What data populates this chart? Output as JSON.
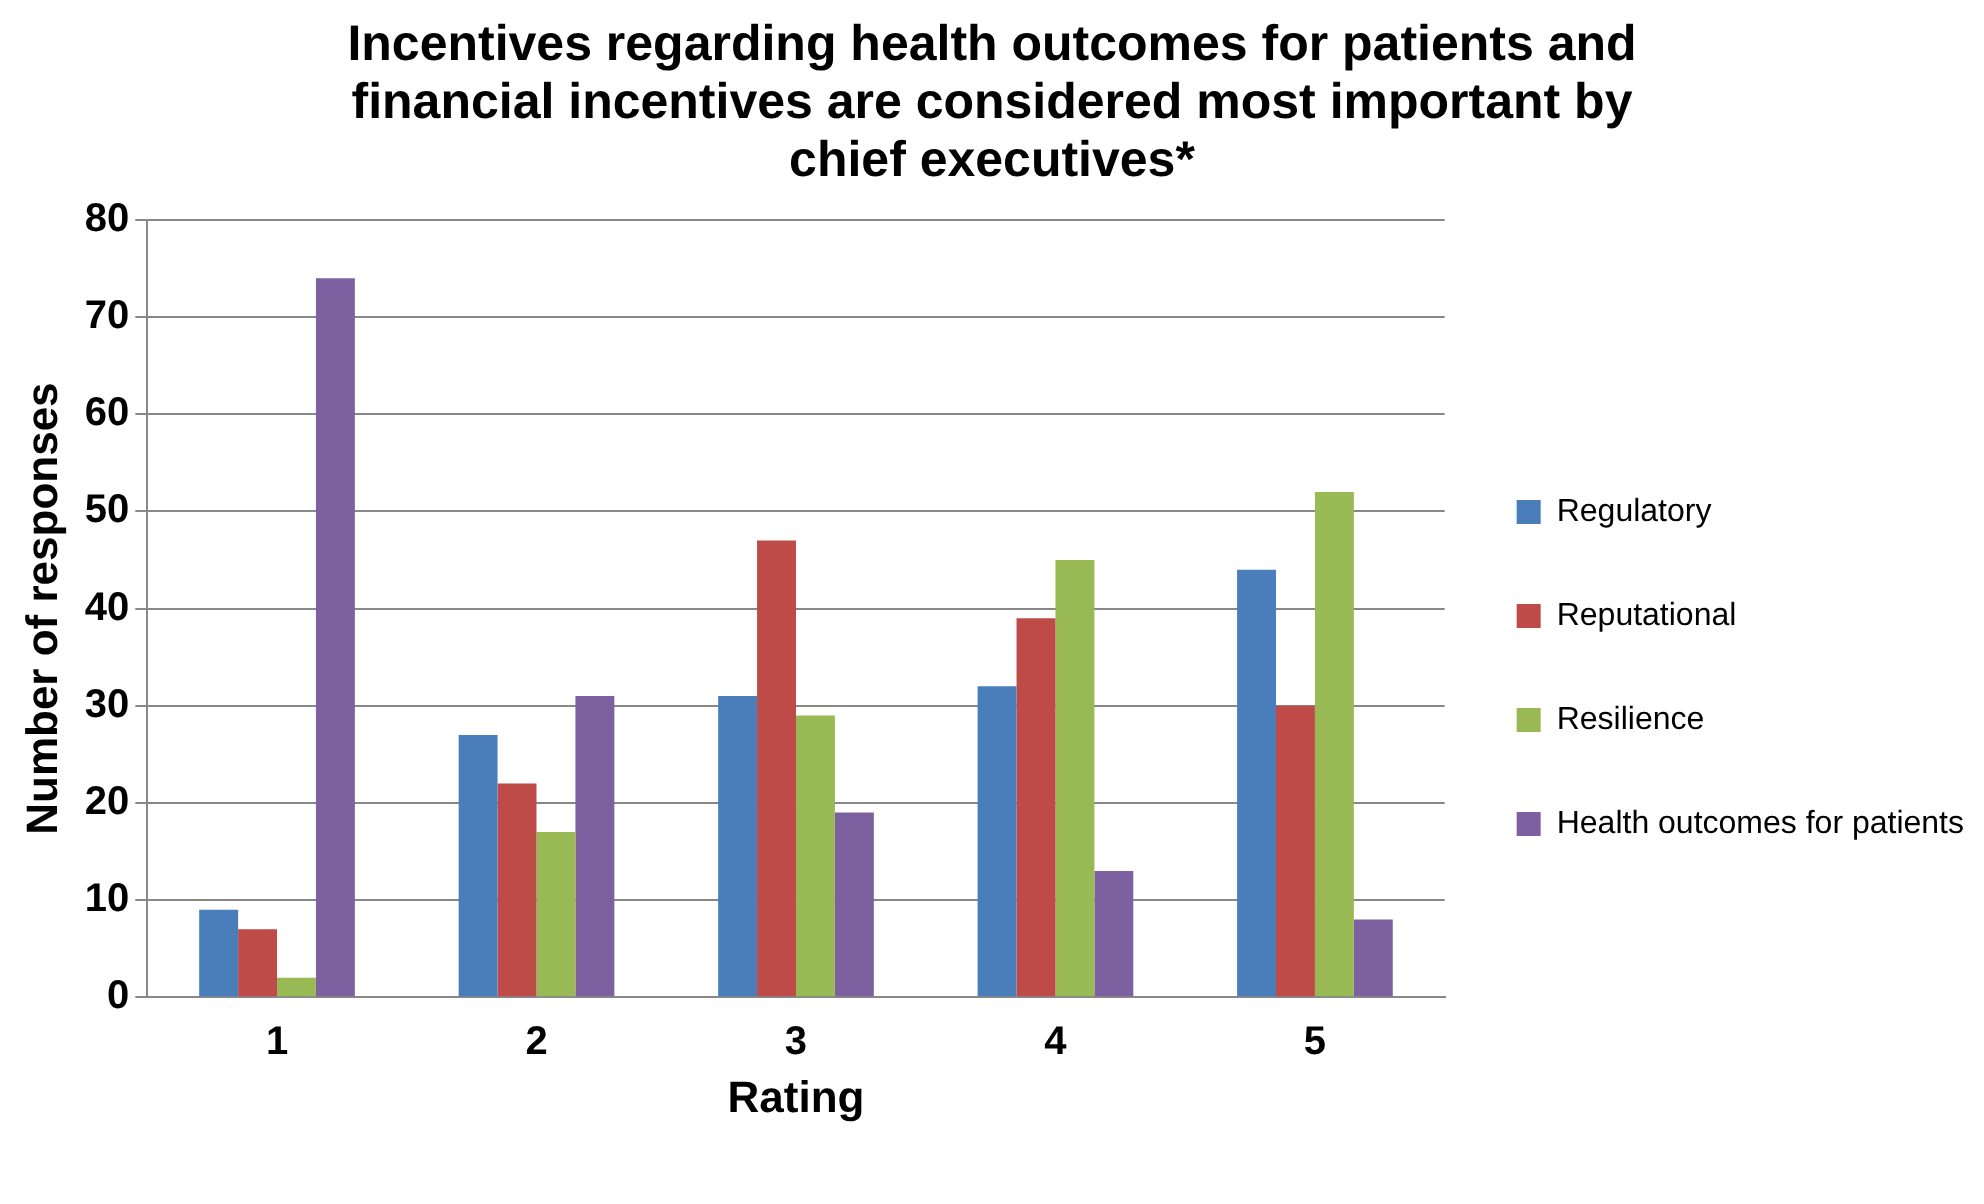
{
  "chart_data": {
    "type": "bar",
    "title": "Incentives regarding health outcomes for patients and financial incentives are considered most important by chief executives*",
    "xlabel": "Rating",
    "ylabel": "Number of responses",
    "categories": [
      "1",
      "2",
      "3",
      "4",
      "5"
    ],
    "series": [
      {
        "name": "Regulatory",
        "color": "#4a7ebb",
        "values": [
          9,
          27,
          31,
          32,
          44
        ]
      },
      {
        "name": "Reputational",
        "color": "#be4b48",
        "values": [
          7,
          22,
          47,
          39,
          30
        ]
      },
      {
        "name": "Resilience",
        "color": "#98b954",
        "values": [
          2,
          17,
          29,
          45,
          52
        ]
      },
      {
        "name": "Health outcomes for patients",
        "color": "#7d60a0",
        "values": [
          74,
          31,
          19,
          13,
          8
        ]
      }
    ],
    "ylim": [
      0,
      80
    ],
    "yticks": [
      0,
      10,
      20,
      30,
      40,
      50,
      60,
      70,
      80
    ],
    "grid": "y",
    "legend": "right"
  }
}
